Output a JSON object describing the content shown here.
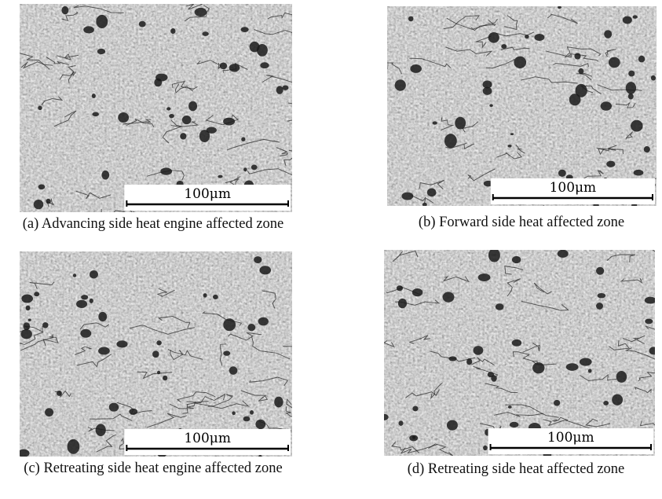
{
  "figure": {
    "panels": [
      {
        "caption": "(a) Advancing side heat engine affected zone",
        "scale_label": "100μm"
      },
      {
        "caption": "(b) Forward side heat affected zone",
        "scale_label": "100μm"
      },
      {
        "caption": "(c) Retreating side heat engine affected zone",
        "scale_label": "100μm"
      },
      {
        "caption": "(d) Retreating side heat affected zone",
        "scale_label": "100μm"
      }
    ]
  }
}
